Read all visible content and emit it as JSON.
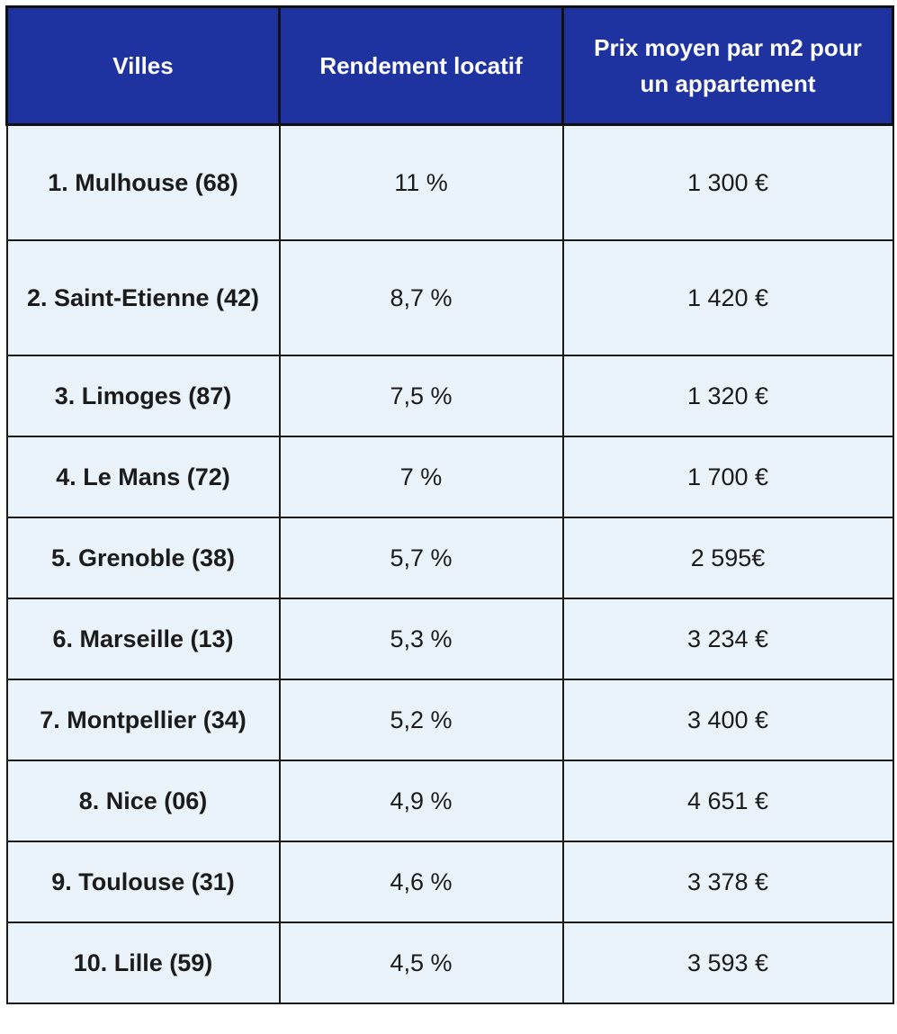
{
  "table": {
    "headers": [
      "Villes",
      "Rendement locatif",
      "Prix moyen par m2 pour un appartement"
    ],
    "rows": [
      {
        "city": "1. Mulhouse (68)",
        "yield": "11 %",
        "price": "1 300 €"
      },
      {
        "city": "2. Saint-Etienne (42)",
        "yield": "8,7 %",
        "price": "1 420 €"
      },
      {
        "city": "3. Limoges (87)",
        "yield": "7,5 %",
        "price": "1 320 €"
      },
      {
        "city": "4. Le Mans (72)",
        "yield": "7 %",
        "price": "1 700 €"
      },
      {
        "city": "5. Grenoble (38)",
        "yield": "5,7 %",
        "price": "2 595€"
      },
      {
        "city": "6. Marseille (13)",
        "yield": "5,3 %",
        "price": "3 234 €"
      },
      {
        "city": "7. Montpellier (34)",
        "yield": "5,2 %",
        "price": "3 400 €"
      },
      {
        "city": "8. Nice (06)",
        "yield": "4,9 %",
        "price": "4 651 €"
      },
      {
        "city": "9. Toulouse (31)",
        "yield": "4,6 %",
        "price": "3 378 €"
      },
      {
        "city": "10. Lille (59)",
        "yield": "4,5 %",
        "price": "3 593 €"
      }
    ]
  },
  "colors": {
    "header_bg": "#1e32a0",
    "header_text": "#ffffff",
    "cell_bg": "#eaf2fa",
    "border": "#1a1a1a"
  }
}
